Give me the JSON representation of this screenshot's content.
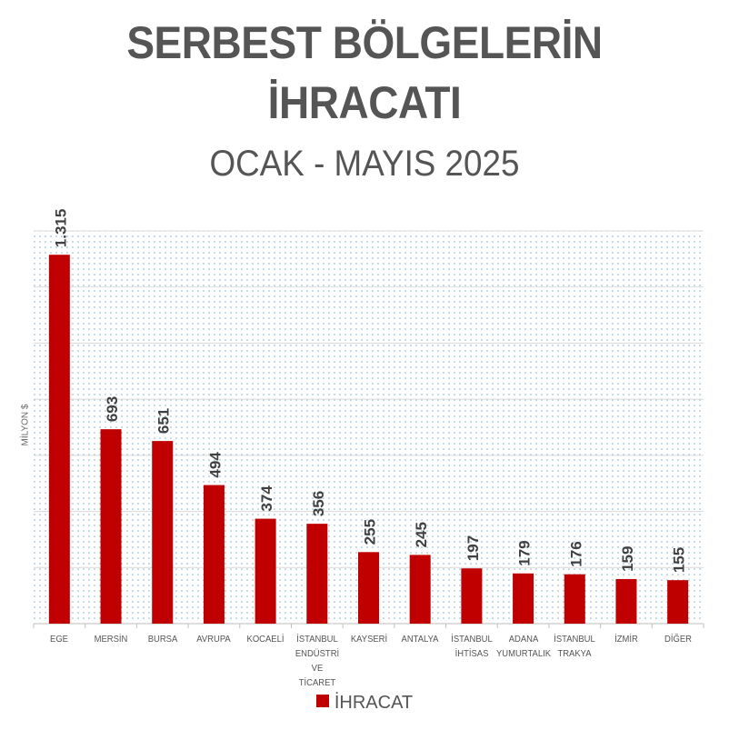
{
  "chart_data": {
    "type": "bar",
    "title": "SERBEST BÖLGELERİN İHRACATI",
    "title_lines": [
      "SERBEST BÖLGELERİN",
      "İHRACATI"
    ],
    "subtitle": "OCAK - MAYIS 2025",
    "ylabel": "MİLYON $",
    "xlabel": "",
    "ylim": [
      0,
      1400
    ],
    "grid": true,
    "legend_position": "bottom",
    "categories": [
      "EGE",
      "MERSİN",
      "BURSA",
      "AVRUPA",
      "KOCAELİ",
      "İSTANBUL\nENDÜSTRİ VE\nTİCARET",
      "KAYSERİ",
      "ANTALYA",
      "İSTANBUL\nİHTİSAS",
      "ADANA\nYUMURTALIK",
      "İSTANBUL\nTRAKYA",
      "İZMİR",
      "DİĞER"
    ],
    "series": [
      {
        "name": "İHRACAT",
        "color": "#c00000",
        "values": [
          1315,
          693,
          651,
          494,
          374,
          356,
          255,
          245,
          197,
          179,
          176,
          159,
          155
        ],
        "labels": [
          "1.315",
          "693",
          "651",
          "494",
          "374",
          "356",
          "255",
          "245",
          "197",
          "179",
          "176",
          "159",
          "155"
        ]
      }
    ]
  }
}
